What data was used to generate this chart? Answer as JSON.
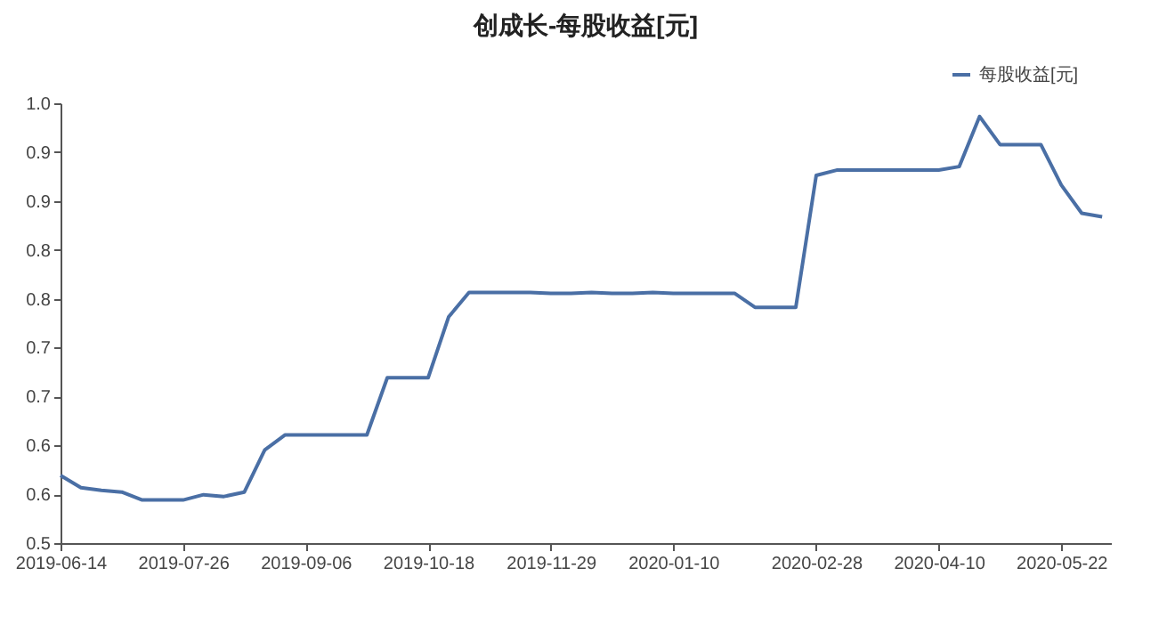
{
  "chart_data": {
    "type": "line",
    "title": "创成长-每股收益[元]",
    "x": [
      "2019-06-14",
      "2019-06-21",
      "2019-06-28",
      "2019-07-05",
      "2019-07-12",
      "2019-07-19",
      "2019-07-26",
      "2019-08-02",
      "2019-08-09",
      "2019-08-16",
      "2019-08-23",
      "2019-08-30",
      "2019-09-06",
      "2019-09-13",
      "2019-09-20",
      "2019-09-27",
      "2019-10-04",
      "2019-10-11",
      "2019-10-18",
      "2019-10-25",
      "2019-11-01",
      "2019-11-08",
      "2019-11-15",
      "2019-11-22",
      "2019-11-29",
      "2019-12-06",
      "2019-12-13",
      "2019-12-20",
      "2019-12-27",
      "2020-01-03",
      "2020-01-10",
      "2020-01-17",
      "2020-01-24",
      "2020-01-31",
      "2020-02-07",
      "2020-02-14",
      "2020-02-21",
      "2020-02-28",
      "2020-03-06",
      "2020-03-13",
      "2020-03-20",
      "2020-03-27",
      "2020-04-03",
      "2020-04-10",
      "2020-04-17",
      "2020-04-24",
      "2020-05-01",
      "2020-05-08",
      "2020-05-15",
      "2020-05-22",
      "2020-05-29",
      "2020-06-05"
    ],
    "series": [
      {
        "name": "每股收益[元]",
        "color": "#4a6fa5",
        "values": [
          0.577,
          0.563,
          0.56,
          0.558,
          0.549,
          0.549,
          0.549,
          0.555,
          0.553,
          0.558,
          0.606,
          0.623,
          0.623,
          0.623,
          0.623,
          0.623,
          0.688,
          0.688,
          0.688,
          0.757,
          0.785,
          0.785,
          0.785,
          0.785,
          0.784,
          0.784,
          0.785,
          0.784,
          0.784,
          0.785,
          0.784,
          0.784,
          0.784,
          0.784,
          0.768,
          0.768,
          0.768,
          0.918,
          0.924,
          0.924,
          0.924,
          0.924,
          0.924,
          0.924,
          0.928,
          0.985,
          0.953,
          0.953,
          0.953,
          0.907,
          0.875,
          0.871
        ]
      }
    ],
    "xlim": [
      "2019-06-14",
      "2020-06-08"
    ],
    "xticks": [
      "2019-06-14",
      "2019-07-26",
      "2019-09-06",
      "2019-10-18",
      "2019-11-29",
      "2020-01-10",
      "2020-02-28",
      "2020-04-10",
      "2020-05-22"
    ],
    "ylim": [
      0.5,
      1.0
    ],
    "yticks": [
      {
        "value": 0.5,
        "label": "0.5"
      },
      {
        "value": 0.5556,
        "label": "0.6"
      },
      {
        "value": 0.6111,
        "label": "0.6"
      },
      {
        "value": 0.6667,
        "label": "0.7"
      },
      {
        "value": 0.7222,
        "label": "0.7"
      },
      {
        "value": 0.7778,
        "label": "0.8"
      },
      {
        "value": 0.8333,
        "label": "0.8"
      },
      {
        "value": 0.8889,
        "label": "0.9"
      },
      {
        "value": 0.9444,
        "label": "0.9"
      },
      {
        "value": 1.0,
        "label": "1.0"
      }
    ],
    "grid": false,
    "legend": "top right",
    "marker": "none",
    "line_style": "solid"
  }
}
